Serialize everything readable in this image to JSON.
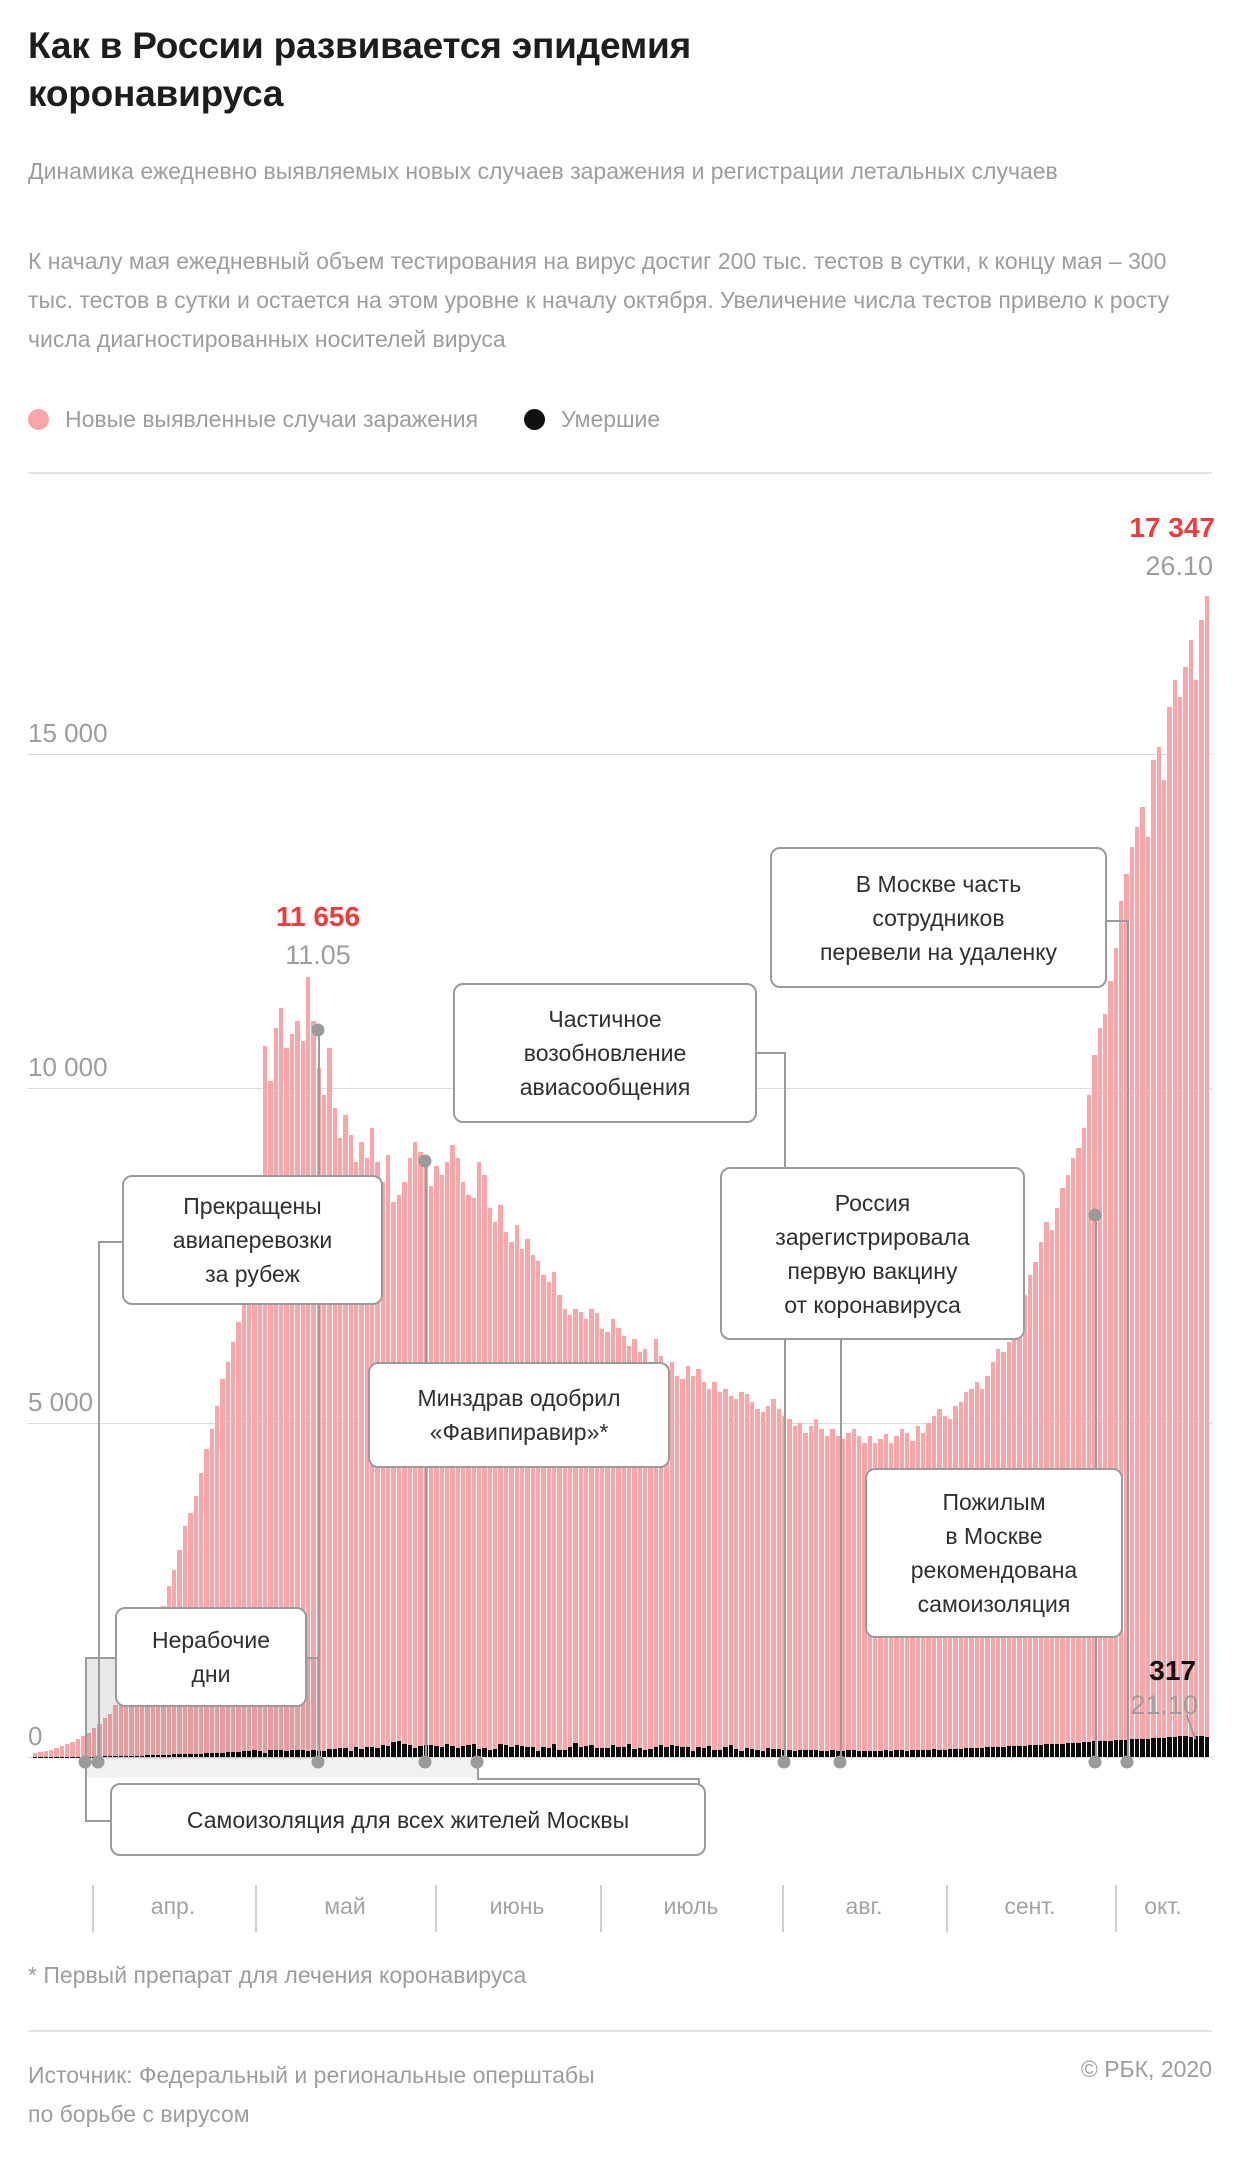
{
  "header": {
    "title": "Как в России развивается эпидемия\nкоронавируса",
    "subtitle": "Динамика ежедневно выявляемых новых случаев заражения и регистрации летальных случаев",
    "description": "К началу мая ежедневный объем тестирования на вирус достиг 200 тыс. тестов в сутки, к концу мая – 300 тыс. тестов в сутки и остается на этом уровне к началу октября. Увеличение числа тестов привело к росту числа диагностированных носителей вируса",
    "legend": {
      "items": [
        {
          "label": "Новые выявленные случаи заражения",
          "color": "#f9a6aa"
        },
        {
          "label": "Умершие",
          "color": "#111111"
        }
      ]
    }
  },
  "chart_data": {
    "type": "bar",
    "title": "Как в России развивается эпидемия коронавируса",
    "x_start": "21.03.2020",
    "x_end": "26.10.2020",
    "xlabel": "",
    "ylabel": "",
    "ylim": [
      0,
      17500
    ],
    "grid": "horizontal",
    "y_gridlines": [
      {
        "label": "15 000",
        "value": 15000
      },
      {
        "label": "10 000",
        "value": 10000
      },
      {
        "label": "5 000",
        "value": 5000
      },
      {
        "label": "0",
        "value": 0
      }
    ],
    "x_months": [
      "апр.",
      "май",
      "июнь",
      "июль",
      "авг.",
      "сент.",
      "окт."
    ],
    "series": [
      {
        "name": "Новые выявленные случаи заражения",
        "color": "#f9a6aa",
        "values": [
          60,
          70,
          90,
          110,
          130,
          160,
          190,
          230,
          270,
          310,
          360,
          440,
          500,
          580,
          650,
          770,
          860,
          1000,
          1150,
          1290,
          1450,
          1670,
          1860,
          2060,
          2250,
          2550,
          2800,
          3100,
          3450,
          3650,
          3900,
          4250,
          4600,
          4900,
          5250,
          5650,
          5900,
          6200,
          6500,
          6800,
          7100,
          7700,
          8100,
          10630,
          10100,
          10900,
          11200,
          10600,
          10800,
          11000,
          10700,
          11656,
          11000,
          10300,
          9900,
          10600,
          9700,
          9250,
          9600,
          9300,
          8900,
          9200,
          8950,
          9400,
          8900,
          8600,
          9000,
          8300,
          8400,
          8600,
          8950,
          9200,
          9050,
          8900,
          8530,
          8830,
          8700,
          8900,
          9150,
          8950,
          8600,
          8400,
          8350,
          8900,
          8700,
          8200,
          8000,
          8250,
          7850,
          7700,
          7950,
          7600,
          7750,
          7500,
          7420,
          7200,
          7100,
          7250,
          6900,
          6700,
          6600,
          6700,
          6650,
          6550,
          6700,
          6630,
          6400,
          6350,
          6540,
          6420,
          6300,
          6150,
          6250,
          6050,
          6100,
          5900,
          6250,
          6000,
          5850,
          5900,
          5700,
          5650,
          5850,
          5700,
          5800,
          5600,
          5500,
          5600,
          5450,
          5500,
          5400,
          5350,
          5450,
          5430,
          5300,
          5200,
          5150,
          5250,
          5350,
          5200,
          5100,
          5050,
          4950,
          5000,
          4850,
          4950,
          5050,
          4900,
          4800,
          4900,
          4800,
          4750,
          4850,
          4900,
          4800,
          4700,
          4800,
          4700,
          4750,
          4830,
          4700,
          4800,
          4900,
          4850,
          4730,
          4950,
          4850,
          5000,
          5100,
          5200,
          5100,
          5050,
          5250,
          5300,
          5450,
          5500,
          5600,
          5500,
          5700,
          5900,
          6100,
          6050,
          6200,
          6400,
          6600,
          6900,
          7200,
          7400,
          7700,
          8000,
          7870,
          8200,
          8500,
          8700,
          8950,
          9100,
          9400,
          9900,
          10500,
          10900,
          11100,
          11600,
          12100,
          12800,
          13200,
          13600,
          13900,
          14200,
          13750,
          14900,
          15100,
          14600,
          15700,
          16100,
          15850,
          16300,
          16700,
          16100,
          17000,
          17347
        ]
      },
      {
        "name": "Умершие",
        "color": "#0d0d0d",
        "values": [
          0,
          0,
          1,
          1,
          2,
          2,
          2,
          3,
          3,
          4,
          5,
          5,
          7,
          8,
          10,
          12,
          13,
          15,
          18,
          20,
          22,
          25,
          28,
          30,
          32,
          35,
          38,
          40,
          42,
          45,
          48,
          50,
          55,
          58,
          60,
          65,
          70,
          75,
          80,
          90,
          96,
          100,
          95,
          58,
          105,
          98,
          112,
          95,
          98,
          104,
          107,
          88,
          107,
          96,
          93,
          113,
          119,
          139,
          135,
          91,
          150,
          127,
          153,
          150,
          139,
          174,
          161,
          222,
          232,
          190,
          181,
          138,
          162,
          182,
          186,
          171,
          144,
          197,
          162,
          135,
          171,
          174,
          191,
          114,
          130,
          111,
          119,
          193,
          182,
          150,
          181,
          161,
          143,
          154,
          92,
          154,
          141,
          188,
          104,
          110,
          154,
          216,
          154,
          168,
          176,
          137,
          134,
          135,
          176,
          153,
          144,
          188,
          114,
          130,
          111,
          119,
          150,
          182,
          150,
          181,
          161,
          143,
          154,
          92,
          154,
          141,
          165,
          104,
          110,
          154,
          180,
          124,
          95,
          135,
          120,
          110,
          95,
          130,
          125,
          115,
          105,
          100,
          95,
          110,
          100,
          98,
          105,
          95,
          90,
          100,
          95,
          92,
          98,
          100,
          95,
          90,
          95,
          92,
          94,
          99,
          95,
          98,
          100,
          96,
          100,
          105,
          110,
          108,
          115,
          112,
          110,
          118,
          120,
          125,
          130,
          128,
          135,
          140,
          145,
          150,
          148,
          155,
          160,
          158,
          165,
          170,
          175,
          180,
          185,
          190,
          188,
          195,
          200,
          205,
          210,
          215,
          220,
          225,
          232,
          240,
          235,
          245,
          250,
          255,
          260,
          265,
          270,
          268,
          275,
          280,
          286,
          290,
          295,
          300,
          317,
          310,
          305,
          312,
          308,
          300
        ]
      }
    ],
    "annotations": {
      "peak_cases_max": {
        "value": "17 347",
        "date": "26.10"
      },
      "peak_cases_may": {
        "value": "11 656",
        "date": "11.05"
      },
      "peak_deaths": {
        "value": "317",
        "date": "21.10"
      }
    },
    "callouts": [
      {
        "id": "prekrashcheny",
        "text": "Прекращены\nавиаперевозки\nза рубеж"
      },
      {
        "id": "nerabochie",
        "text": "Нерабочие\nдни"
      },
      {
        "id": "samoizolyaciya",
        "text": "Самоизоляция для всех жителей Москвы"
      },
      {
        "id": "minzdrav",
        "text": "Минздрав одобрил\n«Фавипиравир»*"
      },
      {
        "id": "chastichnoe",
        "text": "Частичное\nвозобновление\nавиасообщения"
      },
      {
        "id": "vakcina",
        "text": "Россия\nзарегистрировала\nпервую вакцину\nот коронавируса"
      },
      {
        "id": "udalenka",
        "text": "В Москве часть\nсотрудников\nперевели на удаленку"
      },
      {
        "id": "pozhilym",
        "text": "Пожилым\nв Москве\nрекомендована\nсамоизоляция"
      }
    ]
  },
  "footnote": "* Первый препарат для лечения коронавируса",
  "footer": {
    "source": "Источник: Федеральный и региональные оперштабы\nпо борьбе с вирусом",
    "copyright": "© РБК, 2020"
  }
}
